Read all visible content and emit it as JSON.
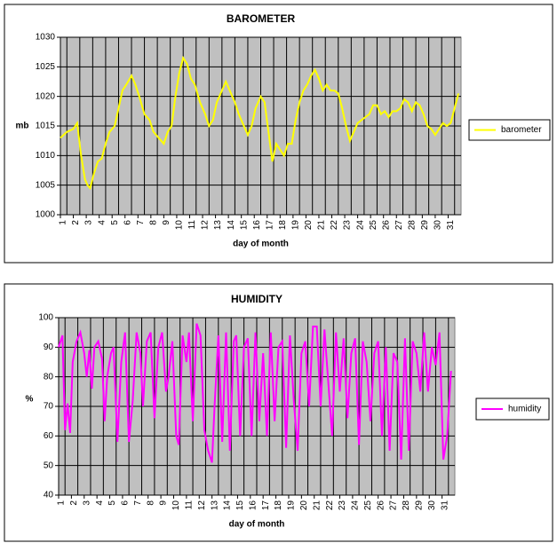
{
  "chart_data": [
    {
      "type": "line",
      "title": "BAROMETER",
      "x_label": "day of month",
      "y_label": "mb",
      "x": [
        1,
        1.5,
        2,
        2.3,
        2.6,
        2.9,
        3.1,
        3.3,
        3.6,
        3.9,
        4.2,
        4.5,
        4.8,
        5.2,
        5.5,
        5.8,
        6.1,
        6.5,
        6.8,
        7.1,
        7.5,
        7.9,
        8.2,
        8.6,
        9,
        9.3,
        9.6,
        9.9,
        10.2,
        10.5,
        10.8,
        11.1,
        11.4,
        11.8,
        12.2,
        12.5,
        12.8,
        13.1,
        13.5,
        13.8,
        14.1,
        14.5,
        14.8,
        15.2,
        15.5,
        15.8,
        16.1,
        16.5,
        16.8,
        17.1,
        17.4,
        17.7,
        18,
        18.3,
        18.6,
        18.9,
        19.2,
        19.5,
        19.8,
        20.1,
        20.4,
        20.7,
        21,
        21.3,
        21.6,
        21.9,
        22.2,
        22.5,
        22.8,
        23.1,
        23.4,
        23.7,
        24,
        24.3,
        24.6,
        24.9,
        25.2,
        25.5,
        25.8,
        26.1,
        26.4,
        26.7,
        27,
        27.3,
        27.6,
        27.9,
        28.2,
        28.5,
        28.8,
        29.1,
        29.4,
        29.7,
        30,
        30.3,
        30.6,
        30.9,
        31.2,
        31.5,
        31.8
      ],
      "series": [
        {
          "name": "barometer",
          "color": "#ffff00",
          "values": [
            1013,
            1014,
            1014.5,
            1015.5,
            1010,
            1006,
            1005,
            1004.5,
            1007,
            1009,
            1009.5,
            1012,
            1014,
            1015,
            1018,
            1021,
            1022,
            1023.5,
            1022,
            1020,
            1017,
            1016,
            1014,
            1013,
            1012,
            1014,
            1015,
            1020,
            1024,
            1026.5,
            1025.5,
            1023,
            1022,
            1019,
            1017,
            1015,
            1016,
            1019,
            1021,
            1022.5,
            1021,
            1019,
            1017,
            1015,
            1013.5,
            1015,
            1018,
            1020,
            1019,
            1014,
            1009,
            1012,
            1011,
            1010,
            1012,
            1012,
            1016,
            1019,
            1021,
            1022,
            1023.5,
            1024.5,
            1023,
            1021,
            1022,
            1021,
            1021,
            1020.5,
            1018,
            1015,
            1012.5,
            1014,
            1015.5,
            1016,
            1016.5,
            1017,
            1018.5,
            1018.5,
            1017,
            1017.5,
            1016.5,
            1017.5,
            1017.5,
            1018,
            1019.5,
            1019,
            1017.5,
            1019,
            1018.5,
            1017,
            1015,
            1014.5,
            1013.5,
            1014.5,
            1015.5,
            1015,
            1015.5,
            1018,
            1020.5
          ]
        }
      ],
      "xlim": [
        1,
        32
      ],
      "ylim": [
        1000,
        1030
      ],
      "xticks": [
        1,
        2,
        3,
        4,
        5,
        6,
        7,
        8,
        9,
        10,
        11,
        12,
        13,
        14,
        15,
        16,
        17,
        18,
        19,
        20,
        21,
        22,
        23,
        24,
        25,
        26,
        27,
        28,
        29,
        30,
        31
      ],
      "yticks": [
        1000,
        1005,
        1010,
        1015,
        1020,
        1025,
        1030
      ],
      "grid": true,
      "legend": "right"
    },
    {
      "type": "line",
      "title": "HUMIDITY",
      "x_label": "day of month",
      "y_label": "%",
      "x": [
        1,
        1.3,
        1.5,
        1.7,
        1.9,
        2.1,
        2.4,
        2.7,
        3,
        3.2,
        3.4,
        3.6,
        3.8,
        4.1,
        4.4,
        4.6,
        4.8,
        5.1,
        5.3,
        5.6,
        5.9,
        6.2,
        6.5,
        6.8,
        7.1,
        7.4,
        7.6,
        7.9,
        8.2,
        8.5,
        8.8,
        9.1,
        9.4,
        9.6,
        9.9,
        10.2,
        10.4,
        10.7,
        11,
        11.2,
        11.5,
        11.8,
        12.1,
        12.4,
        12.7,
        13,
        13.2,
        13.5,
        13.8,
        14.1,
        14.4,
        14.7,
        14.9,
        15.2,
        15.5,
        15.8,
        16.1,
        16.4,
        16.7,
        17,
        17.3,
        17.6,
        17.9,
        18.2,
        18.5,
        18.8,
        19.1,
        19.4,
        19.7,
        20,
        20.3,
        20.6,
        20.9,
        21.2,
        21.5,
        21.8,
        22.1,
        22.4,
        22.7,
        23,
        23.3,
        23.6,
        23.9,
        24.2,
        24.5,
        24.8,
        25.1,
        25.4,
        25.7,
        26,
        26.3,
        26.6,
        26.9,
        27.2,
        27.5,
        27.8,
        28.1,
        28.4,
        28.7,
        29,
        29.3,
        29.6,
        29.9,
        30.2,
        30.5,
        30.8,
        31.1,
        31.4,
        31.7
      ],
      "series": [
        {
          "name": "humidity",
          "color": "#ff00ff",
          "values": [
            90,
            94,
            62,
            71,
            61,
            85,
            92,
            95,
            88,
            80,
            89,
            76,
            90,
            92,
            86,
            65,
            80,
            88,
            90,
            58,
            85,
            95,
            58,
            72,
            95,
            88,
            70,
            92,
            95,
            66,
            90,
            95,
            75,
            80,
            92,
            60,
            57,
            94,
            85,
            95,
            65,
            98,
            94,
            62,
            55,
            51,
            70,
            94,
            58,
            95,
            55,
            92,
            94,
            60,
            90,
            93,
            60,
            95,
            65,
            88,
            60,
            95,
            65,
            90,
            92,
            56,
            94,
            72,
            55,
            88,
            92,
            70,
            97,
            97,
            70,
            96,
            78,
            60,
            95,
            75,
            93,
            66,
            88,
            93,
            57,
            92,
            85,
            65,
            88,
            92,
            60,
            90,
            55,
            88,
            85,
            52,
            93,
            55,
            92,
            88,
            75,
            95,
            75,
            90,
            84,
            95,
            52,
            60,
            82
          ]
        }
      ],
      "xlim": [
        1,
        32
      ],
      "ylim": [
        40,
        100
      ],
      "xticks": [
        1,
        2,
        3,
        4,
        5,
        6,
        7,
        8,
        9,
        10,
        11,
        12,
        13,
        14,
        15,
        16,
        17,
        18,
        19,
        20,
        21,
        22,
        23,
        24,
        25,
        26,
        27,
        28,
        29,
        30,
        31
      ],
      "yticks": [
        40,
        50,
        60,
        70,
        80,
        90,
        100
      ],
      "grid": true,
      "legend": "right"
    }
  ]
}
